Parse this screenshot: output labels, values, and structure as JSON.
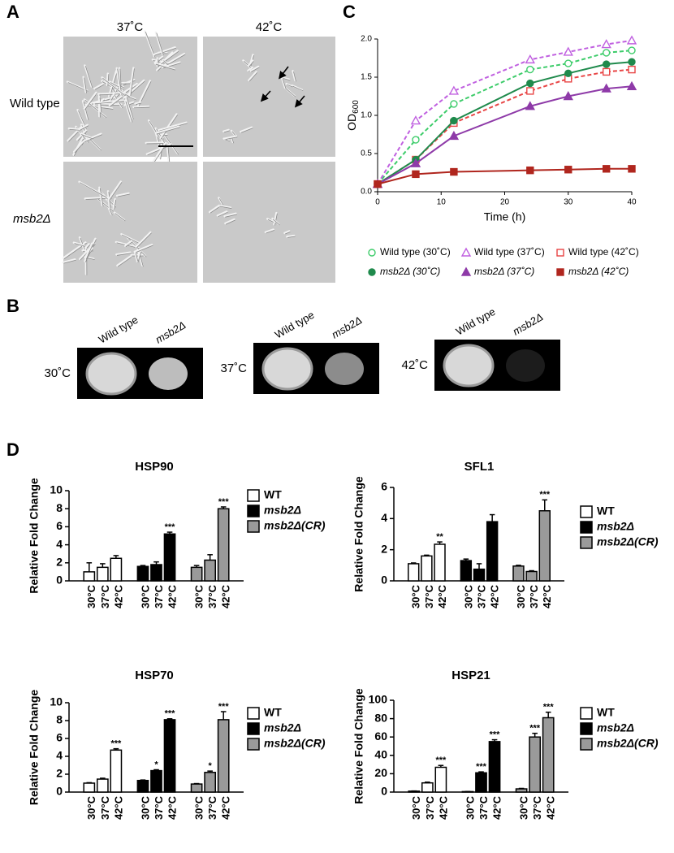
{
  "panel_labels": [
    "A",
    "B",
    "C",
    "D"
  ],
  "panel_a": {
    "columns": [
      "37˚C",
      "42˚C"
    ],
    "rows": [
      "Wild type",
      "msb2Δ"
    ]
  },
  "panel_b": {
    "plates": [
      {
        "temperature": "30˚C",
        "strains": [
          "Wild type",
          "msb2Δ"
        ]
      },
      {
        "temperature": "37˚C",
        "strains": [
          "Wild type",
          "msb2Δ"
        ]
      },
      {
        "temperature": "42˚C",
        "strains": [
          "Wild type",
          "msb2Δ"
        ]
      }
    ]
  },
  "chart_data": [
    {
      "type": "line",
      "y_label": "OD",
      "y_label_subscript": "600",
      "x_label": "Time (h)",
      "x": [
        0,
        6,
        12,
        24,
        30,
        36,
        40
      ],
      "xlim": [
        0,
        40
      ],
      "xticks": [
        0,
        10,
        20,
        30,
        40
      ],
      "ylim": [
        0,
        2
      ],
      "yticks": [
        {
          "value": 0,
          "label": "0.0"
        },
        0.5,
        {
          "value": 1,
          "label": "1.0"
        },
        1.5,
        {
          "value": 2,
          "label": "2.0"
        }
      ],
      "series": [
        {
          "name": "Wild type (30˚C)",
          "color": "#3dcc6a",
          "marker": "circle",
          "filled": false,
          "dashed": true,
          "values": [
            0.1,
            0.68,
            1.15,
            1.6,
            1.68,
            1.82,
            1.85
          ]
        },
        {
          "name": "Wild type (37˚C)",
          "color": "#c060e0",
          "marker": "triangle",
          "filled": false,
          "dashed": true,
          "values": [
            0.1,
            0.93,
            1.32,
            1.73,
            1.83,
            1.93,
            1.98
          ]
        },
        {
          "name": "Wild type (42˚C)",
          "color": "#e84545",
          "marker": "square",
          "filled": false,
          "dashed": true,
          "values": [
            0.1,
            0.42,
            0.9,
            1.32,
            1.48,
            1.57,
            1.6
          ]
        },
        {
          "name": "msb2Δ (30˚C)",
          "color": "#1f8a4c",
          "marker": "circle",
          "filled": true,
          "dashed": false,
          "values": [
            0.1,
            0.42,
            0.93,
            1.42,
            1.55,
            1.67,
            1.7
          ]
        },
        {
          "name": "msb2Δ (37˚C)",
          "color": "#8e3aa8",
          "marker": "triangle",
          "filled": true,
          "dashed": false,
          "values": [
            0.1,
            0.37,
            0.73,
            1.12,
            1.25,
            1.35,
            1.38
          ]
        },
        {
          "name": "msb2Δ (42˚C)",
          "color": "#b0261e",
          "marker": "square",
          "filled": true,
          "dashed": false,
          "values": [
            0.1,
            0.23,
            0.26,
            0.28,
            0.29,
            0.3,
            0.3
          ]
        }
      ]
    },
    {
      "type": "bar",
      "title": "HSP90",
      "y_label": "Relative Fold Change",
      "categories": [
        "30°C",
        "37°C",
        "42°C"
      ],
      "ylim": [
        0,
        10
      ],
      "yticks": [
        0,
        2,
        4,
        6,
        8,
        10
      ],
      "series": [
        {
          "name": "WT",
          "color": "#ffffff",
          "values": [
            1.0,
            1.5,
            2.5
          ],
          "errors": [
            1.0,
            0.4,
            0.3
          ],
          "stars": [
            null,
            null,
            null
          ]
        },
        {
          "name": "msb2Δ",
          "color": "#000000",
          "values": [
            1.6,
            1.8,
            5.2
          ],
          "errors": [
            0.1,
            0.3,
            0.2
          ],
          "stars": [
            null,
            null,
            "***"
          ]
        },
        {
          "name": "msb2Δ(CR)",
          "color": "#9a9a9a",
          "values": [
            1.5,
            2.3,
            8.0
          ],
          "errors": [
            0.2,
            0.6,
            0.2
          ],
          "stars": [
            null,
            null,
            "***"
          ]
        }
      ]
    },
    {
      "type": "bar",
      "title": "SFL1",
      "y_label": "Relative Fold Change",
      "categories": [
        "30°C",
        "37°C",
        "42°C"
      ],
      "ylim": [
        0,
        6
      ],
      "yticks": [
        0,
        2,
        4,
        6
      ],
      "series": [
        {
          "name": "WT",
          "color": "#ffffff",
          "values": [
            1.1,
            1.6,
            2.35
          ],
          "errors": [
            0.05,
            0.05,
            0.15
          ],
          "stars": [
            null,
            null,
            "**"
          ]
        },
        {
          "name": "msb2Δ",
          "color": "#000000",
          "values": [
            1.3,
            0.75,
            3.8
          ],
          "errors": [
            0.1,
            0.35,
            0.45
          ],
          "stars": [
            null,
            null,
            null
          ]
        },
        {
          "name": "msb2Δ(CR)",
          "color": "#9a9a9a",
          "values": [
            0.95,
            0.6,
            4.5
          ],
          "errors": [
            0.05,
            0.05,
            0.7
          ],
          "stars": [
            null,
            null,
            "***"
          ]
        }
      ]
    },
    {
      "type": "bar",
      "title": "HSP70",
      "y_label": "Relative Fold Change",
      "categories": [
        "30°C",
        "37°C",
        "42°C"
      ],
      "ylim": [
        0,
        10
      ],
      "yticks": [
        0,
        2,
        4,
        6,
        8,
        10
      ],
      "series": [
        {
          "name": "WT",
          "color": "#ffffff",
          "values": [
            1.0,
            1.45,
            4.7
          ],
          "errors": [
            0.05,
            0.1,
            0.15
          ],
          "stars": [
            null,
            null,
            "***"
          ]
        },
        {
          "name": "msb2Δ",
          "color": "#000000",
          "values": [
            1.3,
            2.4,
            8.1
          ],
          "errors": [
            0.05,
            0.1,
            0.1
          ],
          "stars": [
            null,
            "*",
            "***"
          ]
        },
        {
          "name": "msb2Δ(CR)",
          "color": "#9a9a9a",
          "values": [
            0.9,
            2.2,
            8.1
          ],
          "errors": [
            0.05,
            0.15,
            0.9
          ],
          "stars": [
            null,
            "*",
            "***"
          ]
        }
      ]
    },
    {
      "type": "bar",
      "title": "HSP21",
      "y_label": "Relative Fold Change",
      "categories": [
        "30°C",
        "37°C",
        "42°C"
      ],
      "ylim": [
        0,
        100
      ],
      "yticks": [
        0,
        20,
        40,
        60,
        80,
        100
      ],
      "series": [
        {
          "name": "WT",
          "color": "#ffffff",
          "values": [
            1,
            10,
            27
          ],
          "errors": [
            0.2,
            0.8,
            2
          ],
          "stars": [
            null,
            null,
            "***"
          ]
        },
        {
          "name": "msb2Δ",
          "color": "#000000",
          "values": [
            0.5,
            21,
            55
          ],
          "errors": [
            0.1,
            1,
            2
          ],
          "stars": [
            null,
            "***",
            "***"
          ]
        },
        {
          "name": "msb2Δ(CR)",
          "color": "#9a9a9a",
          "values": [
            3.5,
            60,
            81
          ],
          "errors": [
            0.5,
            4,
            6
          ],
          "stars": [
            null,
            "***",
            "***"
          ]
        }
      ]
    }
  ]
}
